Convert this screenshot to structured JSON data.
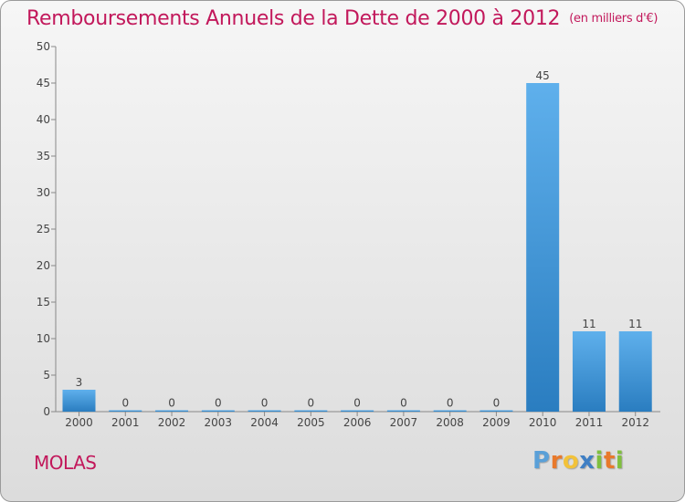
{
  "page": {
    "title": "Remboursements Annuels de la Dette de 2000 à 2012",
    "unit": "(en milliers d'€)",
    "town": "MOLAS",
    "logo": {
      "letters": [
        {
          "char": "P",
          "color": "#5aa0d8"
        },
        {
          "char": "r",
          "color": "#e8792b"
        },
        {
          "char": "o",
          "color": "#f2c23a"
        },
        {
          "char": "x",
          "color": "#3f7fc4"
        },
        {
          "char": "i",
          "color": "#7fbf3f"
        },
        {
          "char": "t",
          "color": "#e8792b"
        },
        {
          "char": "i",
          "color": "#7fbf3f"
        }
      ]
    }
  },
  "chart_data": {
    "type": "bar",
    "categories": [
      "2000",
      "2001",
      "2002",
      "2003",
      "2004",
      "2005",
      "2006",
      "2007",
      "2008",
      "2009",
      "2010",
      "2011",
      "2012"
    ],
    "values": [
      3,
      0,
      0,
      0,
      0,
      0,
      0,
      0,
      0,
      0,
      45,
      11,
      11
    ],
    "ylim": [
      0,
      50
    ],
    "yticks": [
      0,
      5,
      10,
      15,
      20,
      25,
      30,
      35,
      40,
      45,
      50
    ],
    "grid": false,
    "bar_color": "#3a8fd6",
    "title_color": "#c2185b"
  }
}
